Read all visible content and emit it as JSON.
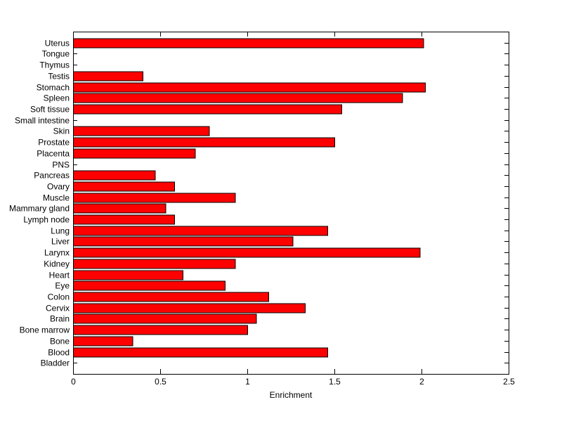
{
  "figure": {
    "background": "#ffffff",
    "text_color": "#000000"
  },
  "chart_data": {
    "type": "bar",
    "orientation": "horizontal",
    "title": "",
    "xlabel": "Enrichment",
    "ylabel": "",
    "xlim": [
      0,
      2.5
    ],
    "xticks": [
      0,
      0.5,
      1,
      1.5,
      2,
      2.5
    ],
    "xtick_labels": [
      "0",
      "0.5",
      "1",
      "1.5",
      "2",
      "2.5"
    ],
    "grid": false,
    "legend": null,
    "bar_color": "#ff0000",
    "bar_edge_color": "#000000",
    "axis_color": "#000000",
    "categories": [
      "Uterus",
      "Tongue",
      "Thymus",
      "Testis",
      "Stomach",
      "Spleen",
      "Soft tissue",
      "Small intestine",
      "Skin",
      "Prostate",
      "Placenta",
      "PNS",
      "Pancreas",
      "Ovary",
      "Muscle",
      "Mammary gland",
      "Lymph node",
      "Lung",
      "Liver",
      "Larynx",
      "Kidney",
      "Heart",
      "Eye",
      "Colon",
      "Cervix",
      "Brain",
      "Bone marrow",
      "Bone",
      "Blood",
      "Bladder"
    ],
    "values": [
      2.01,
      0,
      0,
      0.4,
      2.02,
      1.89,
      1.54,
      0,
      0.78,
      1.5,
      0.7,
      0,
      0.47,
      0.58,
      0.93,
      0.53,
      0.58,
      1.46,
      1.26,
      1.99,
      0.93,
      0.63,
      0.87,
      1.12,
      1.33,
      1.05,
      1.0,
      0.34,
      1.46,
      0
    ]
  }
}
